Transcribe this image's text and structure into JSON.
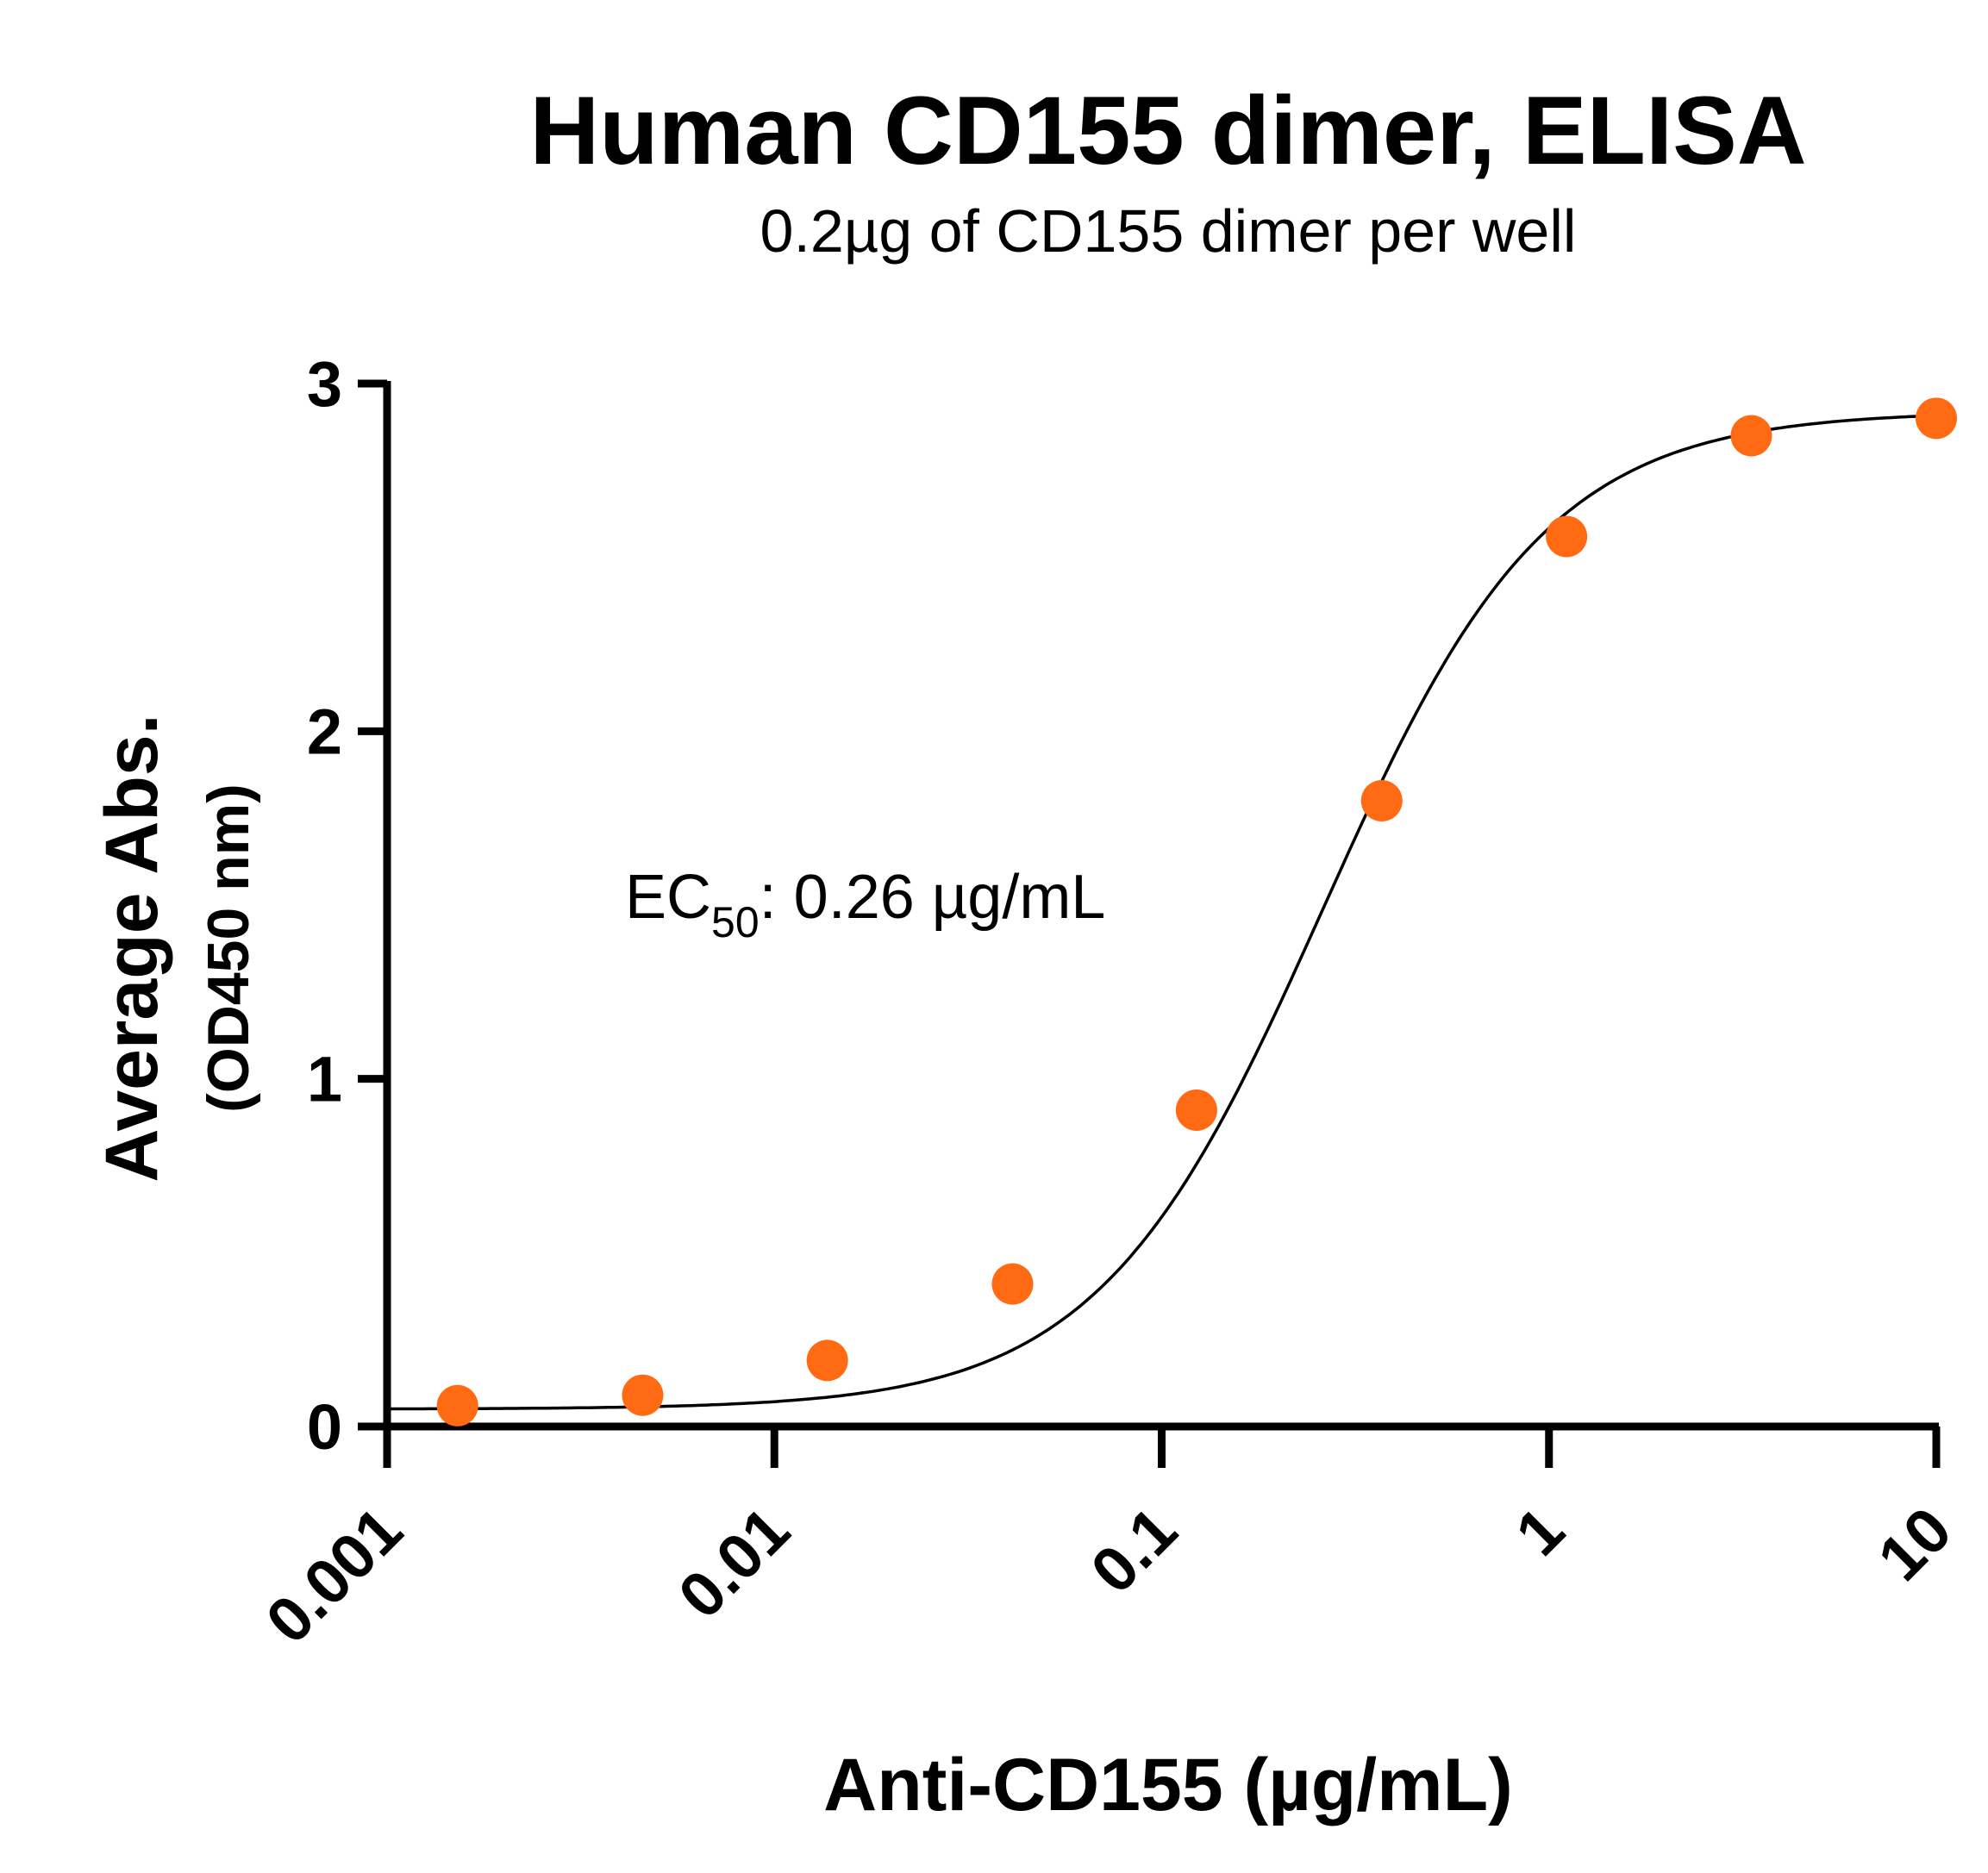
{
  "chart_data": {
    "type": "scatter",
    "title": "Human CD155 dimer, ELISA",
    "subtitle": "0.2µg of CD155 dimer per well",
    "xlabel": "Anti-CD155  (µg/mL)",
    "ylabel": "Average Abs.",
    "ylabel_sub": "(OD450 nm)",
    "x_scale": "log",
    "xlim": [
      0.001,
      10
    ],
    "ylim": [
      0,
      3
    ],
    "x_ticks": [
      0.001,
      0.01,
      0.1,
      1,
      10
    ],
    "x_tick_labels": [
      "0.001",
      "0.01",
      "0.1",
      "1",
      "10"
    ],
    "y_ticks": [
      0,
      1,
      2,
      3
    ],
    "y_tick_labels": [
      "0",
      "1",
      "2",
      "3"
    ],
    "grid": false,
    "annotation": {
      "prefix": "EC",
      "sub": "50",
      "suffix": ": 0.26 µg/mL"
    },
    "point_color": "#ff6a13",
    "curve_color": "#000000",
    "series": [
      {
        "x": [
          0.00152,
          0.00457,
          0.0137,
          0.0412,
          0.123,
          0.37,
          1.11,
          3.33,
          10
        ],
        "y": [
          0.06,
          0.09,
          0.19,
          0.41,
          0.91,
          1.8,
          2.56,
          2.85,
          2.9
        ]
      }
    ],
    "fit": {
      "bottom": 0.05,
      "top": 2.92,
      "ec50": 0.26,
      "hill": 1.5
    }
  }
}
